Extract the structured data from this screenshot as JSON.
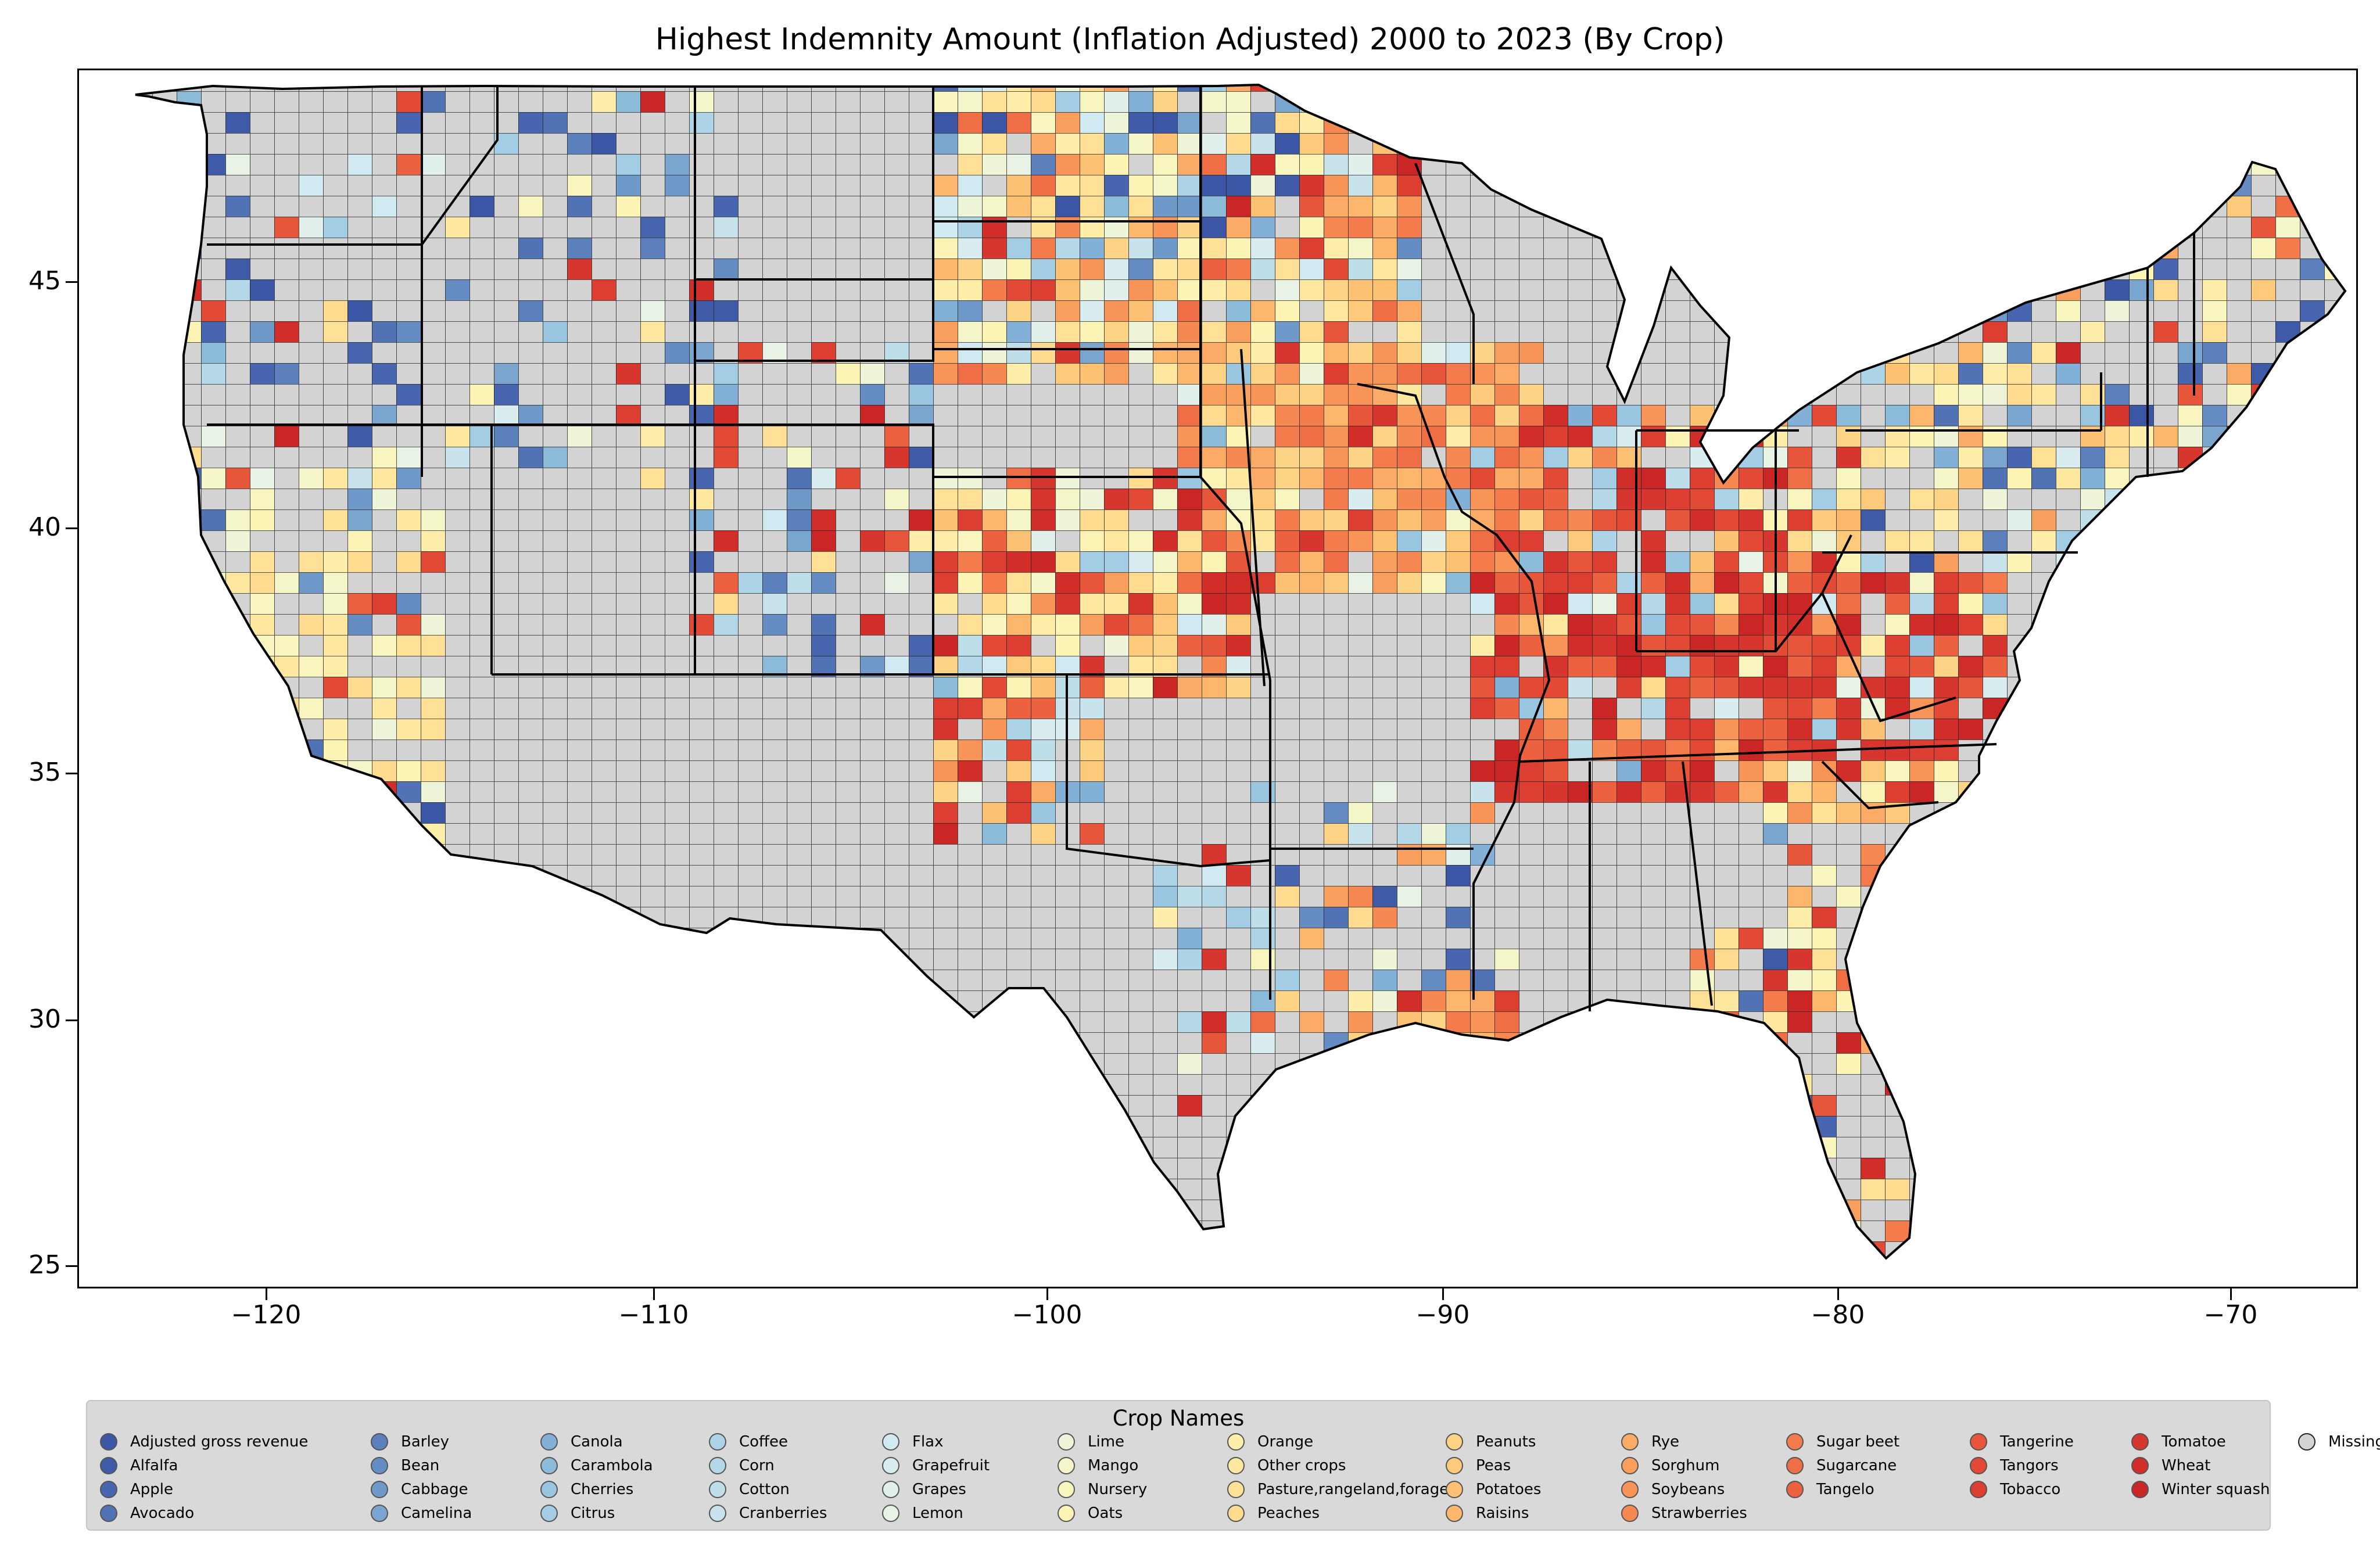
{
  "title": "Highest Indemnity Amount  (Inflation Adjusted) 2000 to 2023 (By Crop)",
  "axes": {
    "x_ticks": [
      "−120",
      "−110",
      "−100",
      "−90",
      "−80",
      "−70"
    ],
    "y_ticks": [
      "45",
      "40",
      "35",
      "30",
      "25"
    ],
    "x_range": [
      -124.8,
      -66.9
    ],
    "y_range": [
      24.5,
      49.4
    ]
  },
  "legend": {
    "title": "Crop Names",
    "items": [
      {
        "label": "Adjusted gross revenue",
        "color": "#3b56a4"
      },
      {
        "label": "Alfalfa",
        "color": "#3f5ba8"
      },
      {
        "label": "Apple",
        "color": "#4766af"
      },
      {
        "label": "Avocado",
        "color": "#5172b5"
      },
      {
        "label": "Barley",
        "color": "#5b80bc"
      },
      {
        "label": "Bean",
        "color": "#658dc3"
      },
      {
        "label": "Cabbage",
        "color": "#6f99c9"
      },
      {
        "label": "Camelina",
        "color": "#79a5cf"
      },
      {
        "label": "Canola",
        "color": "#82b0d6"
      },
      {
        "label": "Carambola",
        "color": "#8cbad9"
      },
      {
        "label": "Cherries",
        "color": "#99c5e0"
      },
      {
        "label": "Citrus",
        "color": "#a3cde4"
      },
      {
        "label": "Coffee",
        "color": "#acd3e6"
      },
      {
        "label": "Corn",
        "color": "#b4d8e8"
      },
      {
        "label": "Cotton",
        "color": "#bedeea"
      },
      {
        "label": "Cranberries",
        "color": "#c8e3ec"
      },
      {
        "label": "Flax",
        "color": "#d1e9f0"
      },
      {
        "label": "Grapefruit",
        "color": "#d9ecef"
      },
      {
        "label": "Grapes",
        "color": "#e2f0ec"
      },
      {
        "label": "Lemon",
        "color": "#e8f3e6"
      },
      {
        "label": "Lime",
        "color": "#eef4d8"
      },
      {
        "label": "Mango",
        "color": "#f4f5c9"
      },
      {
        "label": "Nursery",
        "color": "#f8f5bf"
      },
      {
        "label": "Oats",
        "color": "#fcf4b5"
      },
      {
        "label": "Orange",
        "color": "#feeeaa"
      },
      {
        "label": "Other crops",
        "color": "#fee8a0"
      },
      {
        "label": "Pasture,rangeland,forage",
        "color": "#fee196"
      },
      {
        "label": "Peaches",
        "color": "#fedb8e"
      },
      {
        "label": "Peanuts",
        "color": "#fdd385"
      },
      {
        "label": "Peas",
        "color": "#fdca7c"
      },
      {
        "label": "Potatoes",
        "color": "#fdc174"
      },
      {
        "label": "Raisins",
        "color": "#fcb76d"
      },
      {
        "label": "Rye",
        "color": "#fbab65"
      },
      {
        "label": "Sorghum",
        "color": "#f99f5e"
      },
      {
        "label": "Soybeans",
        "color": "#f89457"
      },
      {
        "label": "Strawberries",
        "color": "#f68851"
      },
      {
        "label": "Sugar beet",
        "color": "#f47b4b"
      },
      {
        "label": "Sugarcane",
        "color": "#f06e45"
      },
      {
        "label": "Tangelo",
        "color": "#ec6240"
      },
      {
        "label": "Tangerine",
        "color": "#e7553b"
      },
      {
        "label": "Tangors",
        "color": "#e24a36"
      },
      {
        "label": "Tobacco",
        "color": "#dc3f32"
      },
      {
        "label": "Tomatoe",
        "color": "#d7362e"
      },
      {
        "label": "Wheat",
        "color": "#d12e2a"
      },
      {
        "label": "Winter squash",
        "color": "#ca2626"
      },
      {
        "label": "Missing values",
        "color": "#d3d3d3"
      }
    ]
  }
}
